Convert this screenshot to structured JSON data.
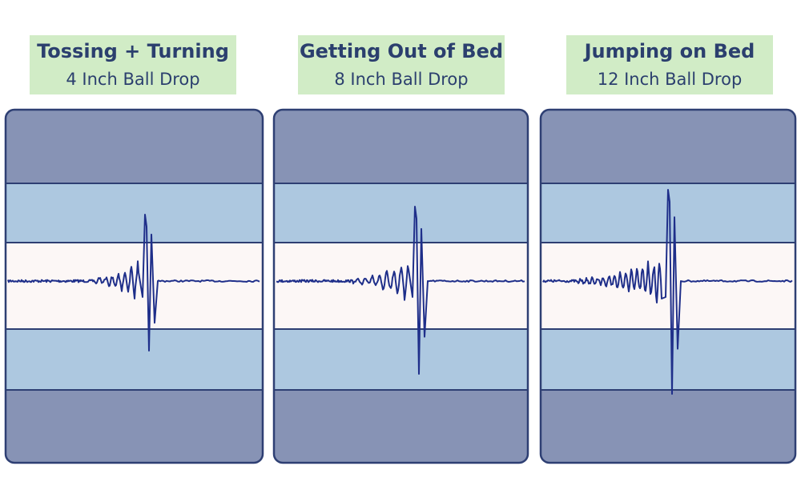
{
  "panels": [
    {
      "title": "Tossing + Turning",
      "subtitle": "4 Inch Ball Drop"
    },
    {
      "title": "Getting Out of Bed",
      "subtitle": "8 Inch Ball Drop"
    },
    {
      "title": "Jumping on Bed",
      "subtitle": "12 Inch Ball Drop"
    }
  ]
}
